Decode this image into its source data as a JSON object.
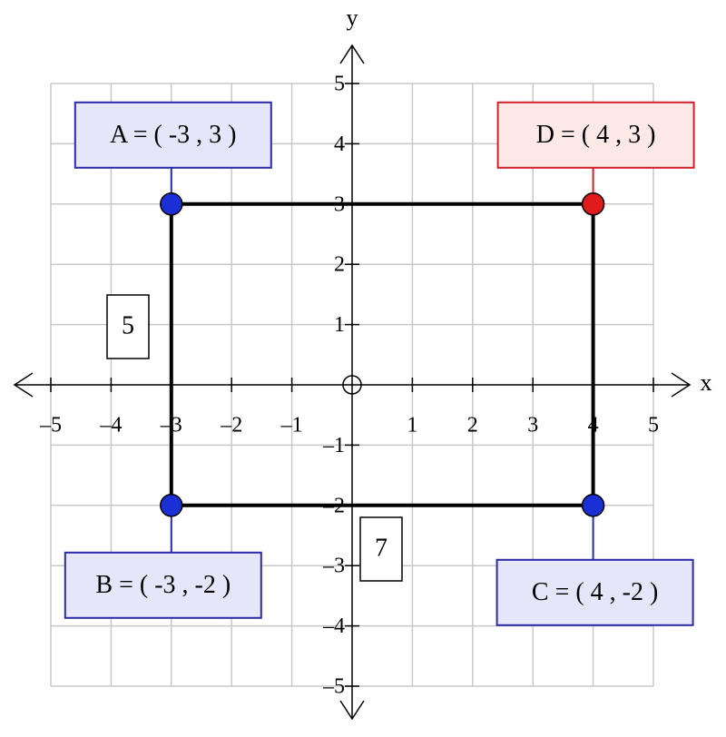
{
  "x_axis": {
    "label": "x",
    "ticks": [
      {
        "value": -5,
        "label": "–5"
      },
      {
        "value": -4,
        "label": "–4"
      },
      {
        "value": -3,
        "label": "–3"
      },
      {
        "value": -2,
        "label": "–2"
      },
      {
        "value": -1,
        "label": "–1"
      },
      1,
      2,
      3,
      4,
      5
    ]
  },
  "y_axis": {
    "label": "y",
    "ticks": [
      {
        "value": -5,
        "label": "–5"
      },
      {
        "value": -4,
        "label": "–4"
      },
      {
        "value": -3,
        "label": "–3"
      },
      {
        "value": -2,
        "label": "–2"
      },
      {
        "value": -1,
        "label": "–1"
      },
      1,
      2,
      3,
      4,
      5
    ]
  },
  "points": [
    {
      "label": "A = ( -3 , 3 )",
      "x": -3,
      "y": 3,
      "color": "#1a2fd6"
    },
    {
      "label": "B = ( -3 , -2 )",
      "x": -3,
      "y": -2,
      "color": "#1a2fd6"
    },
    {
      "label": "C = ( 4 , -2 )",
      "x": 4,
      "y": -2,
      "color": "#1a2fd6"
    },
    {
      "label": "D = ( 4 , 3 )",
      "x": 4,
      "y": 3,
      "color": "#e01b1b"
    }
  ],
  "side_labels": [
    "5",
    "7"
  ]
}
